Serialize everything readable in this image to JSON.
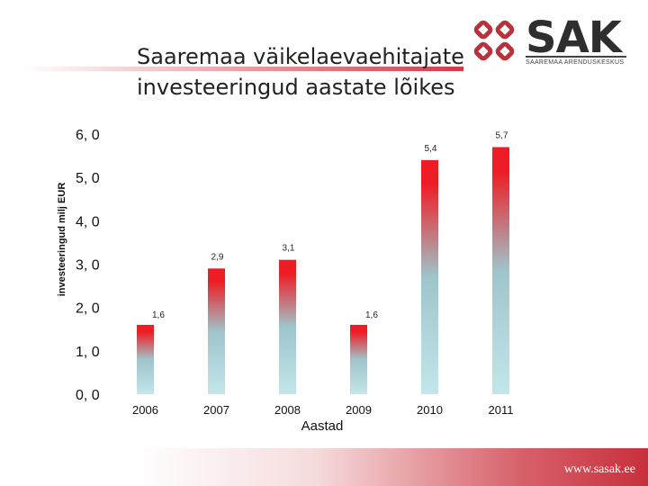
{
  "title_lines": [
    "Saaremaa väikelaevaehitajate",
    "investeeringud aastate lõikes"
  ],
  "logo": {
    "name": "SAK",
    "subtitle": "SAAREMAA ARENDUSKESKUS",
    "icon": "sak-logo-mark",
    "color": "#b8323c"
  },
  "footer": {
    "url": "www.sasak.ee"
  },
  "colors": {
    "bar_top": "#ee1c24",
    "bar_mid": "#9ec5cb",
    "bar_bottom": "#c3e6ea"
  },
  "chart_data": {
    "type": "bar",
    "categories": [
      "2006",
      "2007",
      "2008",
      "2009",
      "2010",
      "2011"
    ],
    "values": [
      1.6,
      2.9,
      3.1,
      1.6,
      5.4,
      5.7
    ],
    "data_labels": [
      "1,6",
      "2,9",
      "3,1",
      "1,6",
      "5,4",
      "5,7"
    ],
    "y_ticks": [
      0,
      1,
      2,
      3,
      4,
      5,
      6
    ],
    "y_tick_labels": [
      "0, 0",
      "1, 0",
      "2, 0",
      "3, 0",
      "4, 0",
      "5, 0",
      "6, 0"
    ],
    "ylim": [
      0,
      6
    ],
    "xlabel": "Aastad",
    "ylabel": "investeeringud milj EUR",
    "grid": false,
    "legend": "none"
  }
}
